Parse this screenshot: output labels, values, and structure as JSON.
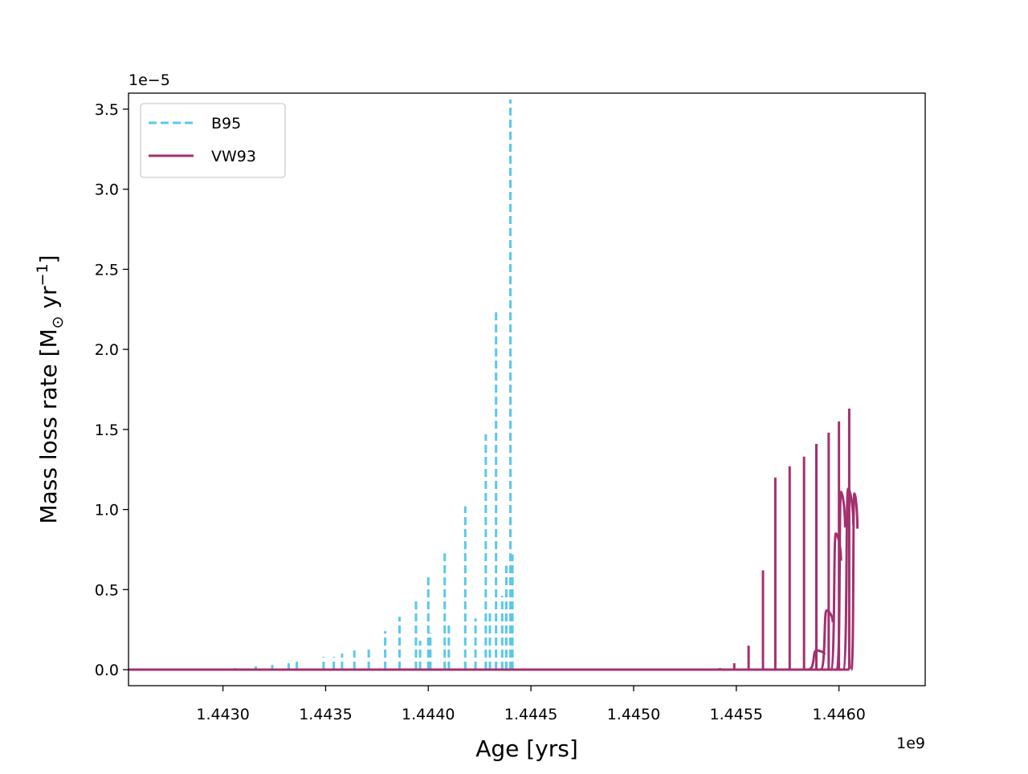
{
  "chart_data": {
    "type": "line",
    "title": "",
    "xlabel": "Age [yrs]",
    "ylabel_main": "Mass loss rate [M",
    "ylabel_sun": "⊙",
    "ylabel_unit": " yr",
    "ylabel_sup": "−1",
    "ylabel_close": "]",
    "x_offset_label": "1e9",
    "y_offset_label": "1e−5",
    "x_scale": 1000000000,
    "y_scale": 1e-05,
    "xlim": [
      1442540000,
      1446420000
    ],
    "ylim": [
      -1e-06,
      3.6e-05
    ],
    "x_ticks": [
      1443000000,
      1443500000,
      1444000000,
      1444500000,
      1445000000,
      1445500000,
      1446000000
    ],
    "x_tick_labels": [
      "1.4430",
      "1.4435",
      "1.4440",
      "1.4445",
      "1.4450",
      "1.4455",
      "1.4460"
    ],
    "y_ticks": [
      0,
      5e-06,
      1e-05,
      1.5e-05,
      2e-05,
      2.5e-05,
      3e-05,
      3.5e-05
    ],
    "y_tick_labels": [
      "0.0",
      "0.5",
      "1.0",
      "1.5",
      "2.0",
      "2.5",
      "3.0",
      "3.5"
    ],
    "legend_position": "upper-left",
    "grid": false,
    "series": [
      {
        "name": "B95",
        "color": "#5bc8ea",
        "style": "dashed",
        "base": {
          "x_start": 1442540000,
          "x_end": 1444080000,
          "values": [
            0,
            0
          ]
        },
        "pulses": [
          {
            "x": 1442910000,
            "peak": 5e-08
          },
          {
            "x": 1443060000,
            "peak": 1e-07
          },
          {
            "x": 1443160000,
            "peak": 2e-07
          },
          {
            "x": 1443240000,
            "peak": 3e-07
          },
          {
            "x": 1443320000,
            "peak": 4e-07
          },
          {
            "x": 1443360000,
            "peak": 6e-07
          },
          {
            "x": 1443490000,
            "peak": 8e-07
          },
          {
            "x": 1443540000,
            "peak": 8e-07
          },
          {
            "x": 1443580000,
            "peak": 1e-06
          },
          {
            "x": 1443640000,
            "peak": 1.2e-06
          },
          {
            "x": 1443710000,
            "peak": 1.5e-06
          },
          {
            "x": 1443790000,
            "peak": 2.4e-06
          },
          {
            "x": 1443860000,
            "peak": 3.3e-06
          },
          {
            "x": 1443940000,
            "peak": 4.4e-06
          },
          {
            "x": 1443960000,
            "peak": 1.8e-06
          },
          {
            "x": 1444000000,
            "peak": 5.8e-06
          },
          {
            "x": 1444010000,
            "peak": 2.3e-06
          },
          {
            "x": 1444080000,
            "peak": 7.5e-06
          },
          {
            "x": 1444100000,
            "peak": 2.8e-06
          },
          {
            "x": 1444180000,
            "peak": 1.02e-05
          },
          {
            "x": 1444230000,
            "peak": 3.2e-06
          },
          {
            "x": 1444280000,
            "peak": 1.47e-05
          },
          {
            "x": 1444300000,
            "peak": 3.7e-06
          },
          {
            "x": 1444330000,
            "peak": 2.24e-05
          },
          {
            "x": 1444360000,
            "peak": 4.6e-06
          },
          {
            "x": 1444380000,
            "peak": 6.5e-06
          },
          {
            "x": 1444400000,
            "peak": 3.56e-05
          },
          {
            "x": 1444410000,
            "peak": 7.2e-06
          }
        ]
      },
      {
        "name": "VW93",
        "color": "#a3306f",
        "style": "solid",
        "base": {
          "x_start": 1442540000,
          "x_end": 1446050000,
          "values": [
            0,
            0
          ]
        },
        "pulses": [
          {
            "x": 1445350000,
            "peak": 5e-08
          },
          {
            "x": 1445420000,
            "peak": 1e-07
          },
          {
            "x": 1445490000,
            "peak": 4e-07
          },
          {
            "x": 1445560000,
            "peak": 1.5e-06
          },
          {
            "x": 1445630000,
            "peak": 6.2e-06
          },
          {
            "x": 1445690000,
            "peak": 1.2e-05
          },
          {
            "x": 1445760000,
            "peak": 1.27e-05
          },
          {
            "x": 1445830000,
            "peak": 1.33e-05
          },
          {
            "x": 1445890000,
            "peak": 1.41e-05
          },
          {
            "x": 1445950000,
            "peak": 1.48e-05
          },
          {
            "x": 1446000000,
            "peak": 1.55e-05
          },
          {
            "x": 1446050000,
            "peak": 1.63e-05
          }
        ],
        "humps": [
          {
            "x0": 1445850000,
            "x1": 1445930000,
            "peak": 1.2e-06
          },
          {
            "x0": 1445910000,
            "x1": 1445970000,
            "peak": 3.7e-06
          },
          {
            "x0": 1445960000,
            "x1": 1446010000,
            "peak": 8.5e-06
          },
          {
            "x0": 1445990000,
            "x1": 1446030000,
            "peak": 1.11e-05
          },
          {
            "x0": 1446020000,
            "x1": 1446070000,
            "peak": 1.13e-05
          },
          {
            "x0": 1446060000,
            "x1": 1446090000,
            "peak": 1.1e-05
          }
        ]
      }
    ]
  }
}
